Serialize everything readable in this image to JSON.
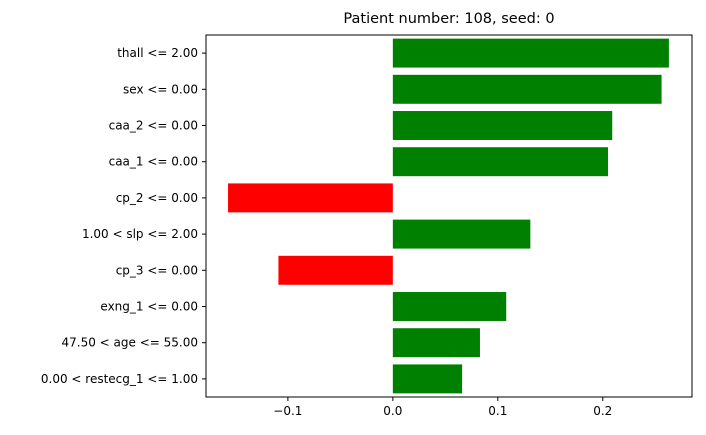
{
  "chart_data": {
    "type": "bar",
    "orientation": "horizontal",
    "title": "Patient number: 108, seed: 0",
    "xlabel": "",
    "ylabel": "",
    "categories": [
      "thall <= 2.00",
      "sex <= 0.00",
      "caa_2 <= 0.00",
      "caa_1 <= 0.00",
      "cp_2 <= 0.00",
      "1.00 < slp <= 2.00",
      "cp_3 <= 0.00",
      "exng_1 <= 0.00",
      "47.50 < age <= 55.00",
      "0.00 < restecg_1 <= 1.00"
    ],
    "values": [
      0.263,
      0.256,
      0.209,
      0.205,
      -0.157,
      0.131,
      -0.109,
      0.108,
      0.083,
      0.066
    ],
    "xlim": [
      -0.178,
      0.285
    ],
    "xticks": [
      -0.1,
      0.0,
      0.1,
      0.2
    ],
    "xtick_labels": [
      "−0.1",
      "0.0",
      "0.1",
      "0.2"
    ],
    "positive_color": "#008000",
    "negative_color": "#ff0000",
    "grid": false,
    "legend": "none"
  }
}
